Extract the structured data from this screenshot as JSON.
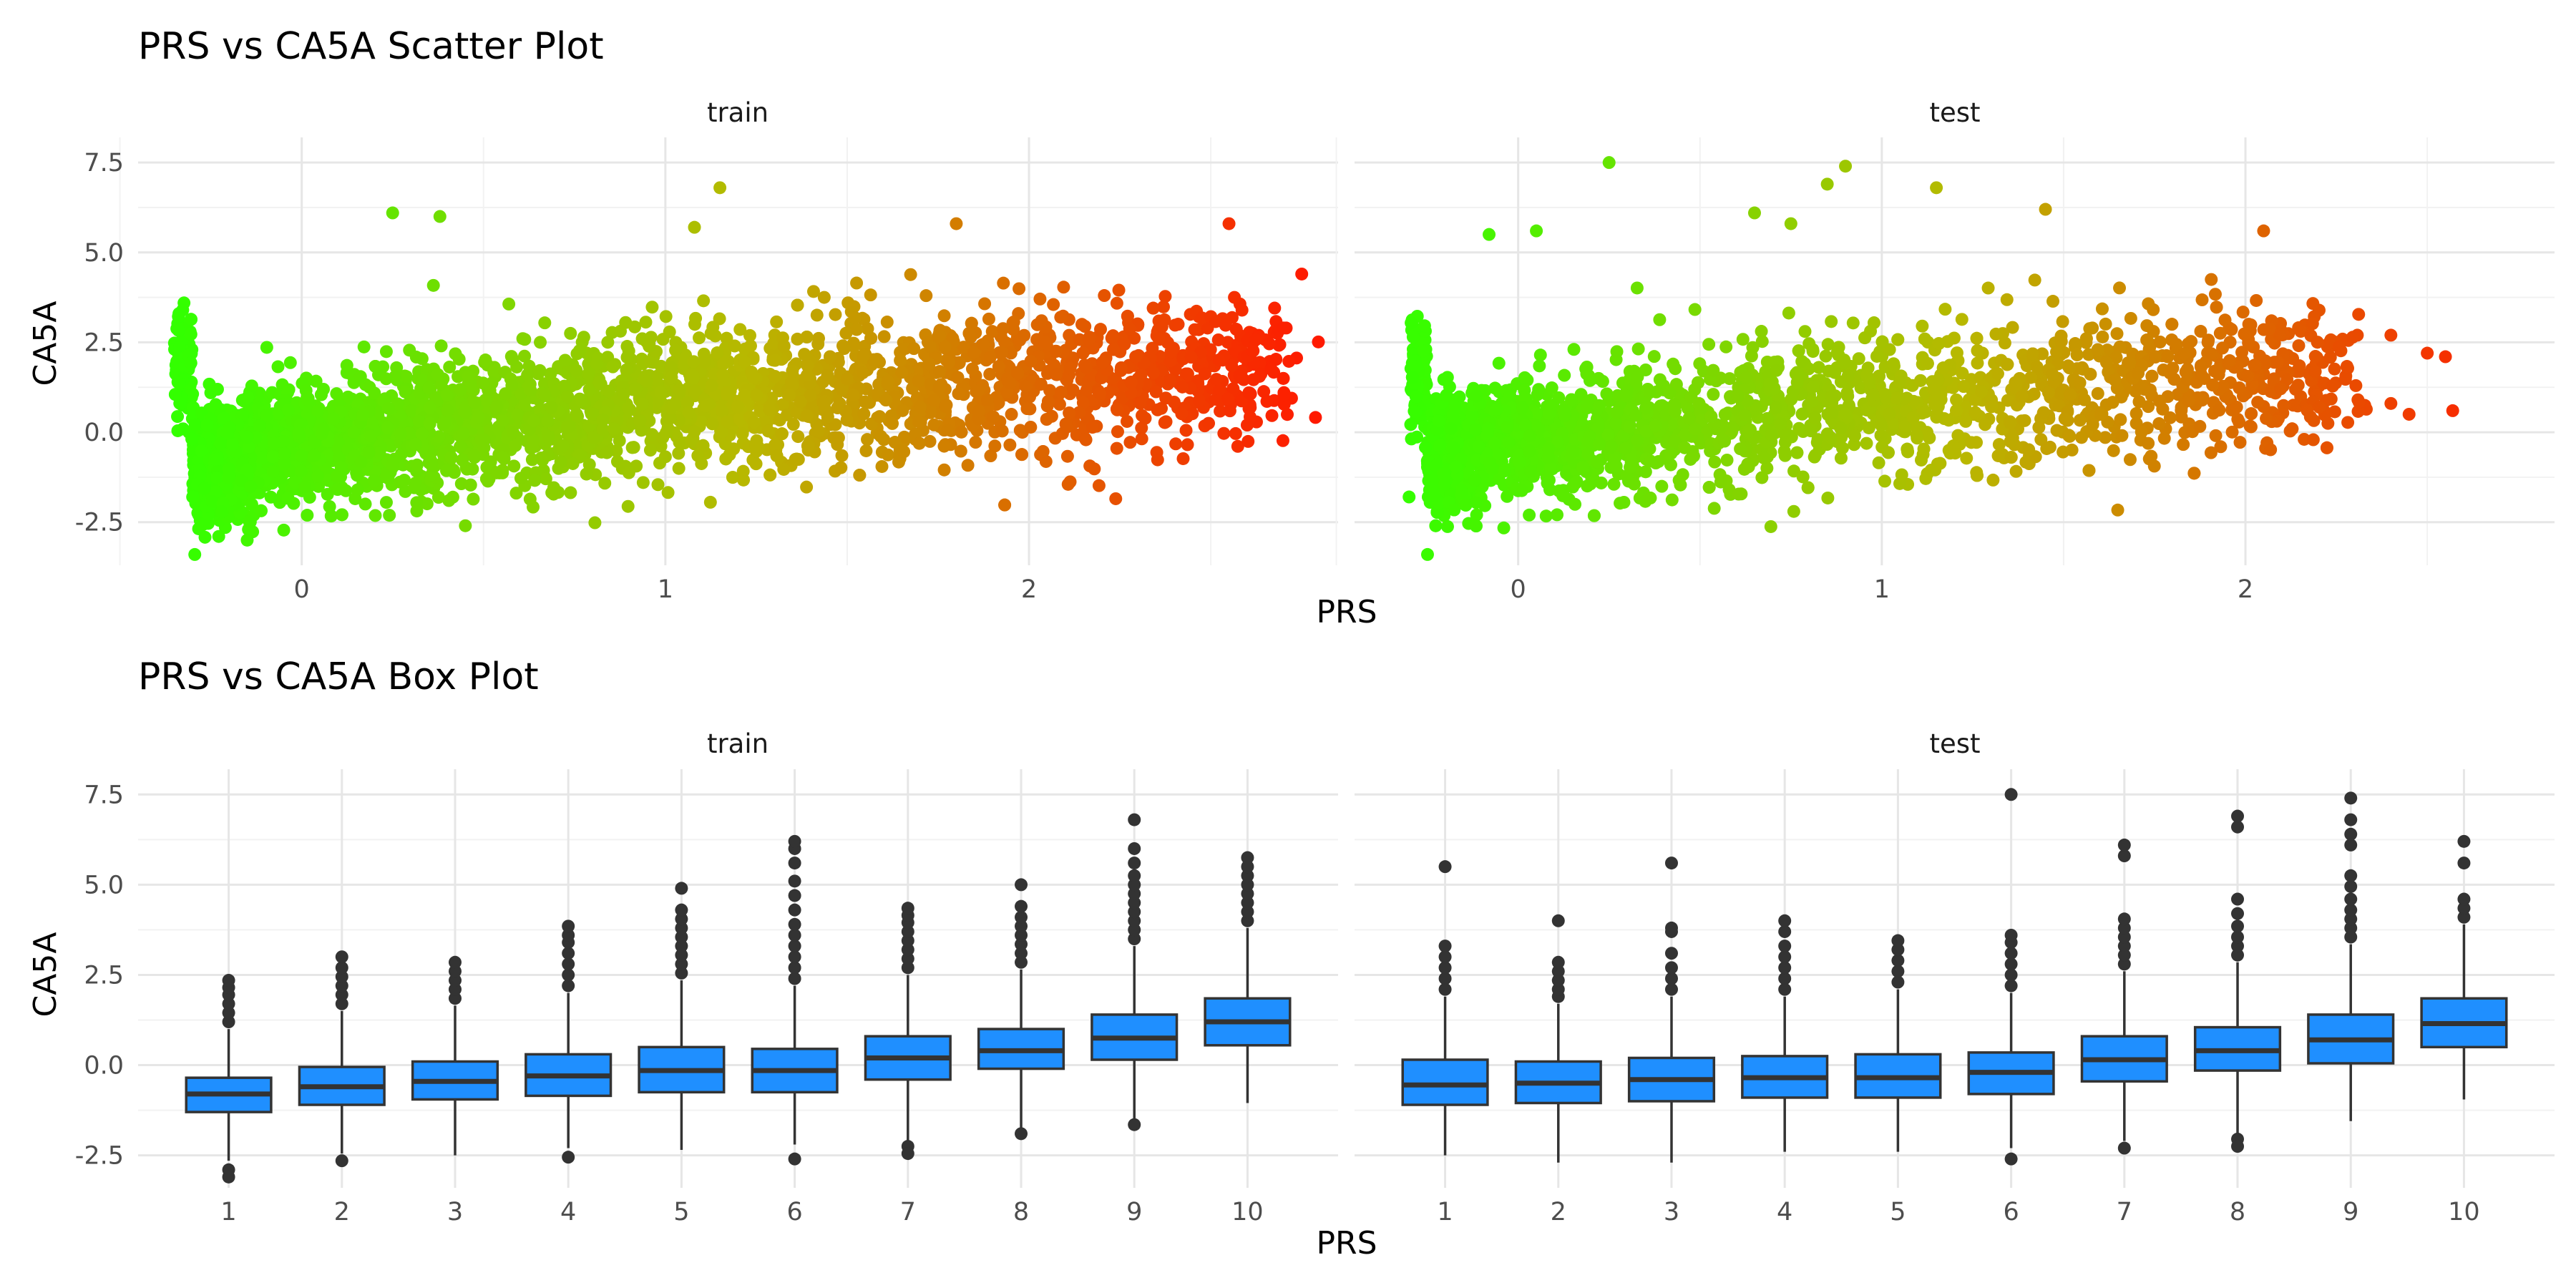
{
  "colors": {
    "point_low": "#33ff00",
    "point_mid": "#b8b800",
    "point_high": "#ff1a00",
    "box_fill": "#1f8fff",
    "box_line": "#333333",
    "grid_major": "#e6e6e6",
    "grid_minor": "#f2f2f2"
  },
  "chart_data": [
    {
      "type": "scatter",
      "title": "PRS vs CA5A Scatter Plot",
      "xlabel": "PRS",
      "ylabel": "CA5A",
      "facets": [
        "train",
        "test"
      ],
      "x_ticks": [
        "0",
        "1",
        "2"
      ],
      "y_ticks": [
        "-2.5",
        "0.0",
        "2.5",
        "5.0",
        "7.5"
      ],
      "xlim": [
        -0.45,
        2.85
      ],
      "ylim": [
        -3.7,
        8.2
      ],
      "grid": true,
      "color_gradient": "green (low PRS) to red (high PRS)",
      "panels": [
        {
          "name": "train",
          "trend_points": [
            [
              -0.3,
              -1.0
            ],
            [
              0.0,
              -0.2
            ],
            [
              0.5,
              0.3
            ],
            [
              1.0,
              0.8
            ],
            [
              1.5,
              1.1
            ],
            [
              2.0,
              1.4
            ],
            [
              2.5,
              1.7
            ],
            [
              2.7,
              1.8
            ]
          ],
          "notable_points": [
            [
              -0.3,
              -1.8
            ],
            [
              -0.15,
              -3.0
            ],
            [
              0.25,
              6.1
            ],
            [
              0.38,
              6.0
            ],
            [
              1.15,
              6.8
            ],
            [
              1.08,
              5.7
            ],
            [
              1.8,
              5.8
            ],
            [
              2.55,
              5.8
            ],
            [
              2.75,
              4.4
            ],
            [
              2.7,
              2.9
            ],
            [
              2.6,
              0.2
            ],
            [
              0.45,
              -2.6
            ]
          ]
        },
        {
          "name": "test",
          "trend_points": [
            [
              -0.25,
              -0.6
            ],
            [
              0.0,
              -0.2
            ],
            [
              0.5,
              0.3
            ],
            [
              1.0,
              0.8
            ],
            [
              1.5,
              1.1
            ],
            [
              2.0,
              1.5
            ],
            [
              2.3,
              1.6
            ]
          ],
          "notable_points": [
            [
              -0.3,
              -1.8
            ],
            [
              0.25,
              7.5
            ],
            [
              0.9,
              7.4
            ],
            [
              0.85,
              6.9
            ],
            [
              1.15,
              6.8
            ],
            [
              1.45,
              6.2
            ],
            [
              2.05,
              5.6
            ],
            [
              -0.08,
              5.5
            ],
            [
              0.05,
              5.6
            ],
            [
              0.65,
              6.1
            ],
            [
              0.75,
              5.8
            ],
            [
              2.4,
              2.7
            ],
            [
              2.5,
              2.2
            ],
            [
              2.55,
              2.1
            ],
            [
              2.57,
              0.6
            ],
            [
              2.45,
              0.5
            ],
            [
              2.4,
              0.8
            ]
          ]
        }
      ]
    },
    {
      "type": "box",
      "title": "PRS vs CA5A Box Plot",
      "xlabel": "PRS",
      "ylabel": "CA5A",
      "facets": [
        "train",
        "test"
      ],
      "categories": [
        "1",
        "2",
        "3",
        "4",
        "5",
        "6",
        "7",
        "8",
        "9",
        "10"
      ],
      "y_ticks": [
        "-2.5",
        "0.0",
        "2.5",
        "5.0",
        "7.5"
      ],
      "ylim": [
        -3.4,
        8.2
      ],
      "grid": true,
      "panels": [
        {
          "name": "train",
          "boxes": [
            {
              "category": "1",
              "q1": -1.3,
              "median": -0.8,
              "q3": -0.35,
              "whisker_low": -2.65,
              "whisker_high": 1.0,
              "outliers": [
                1.2,
                1.45,
                1.7,
                1.95,
                2.15,
                2.35,
                -2.9,
                -3.1
              ]
            },
            {
              "category": "2",
              "q1": -1.1,
              "median": -0.6,
              "q3": -0.05,
              "whisker_low": -2.45,
              "whisker_high": 1.5,
              "outliers": [
                1.7,
                1.95,
                2.2,
                2.45,
                2.7,
                3.0,
                -2.65
              ]
            },
            {
              "category": "3",
              "q1": -0.95,
              "median": -0.45,
              "q3": 0.1,
              "whisker_low": -2.5,
              "whisker_high": 1.65,
              "outliers": [
                1.85,
                2.1,
                2.35,
                2.6,
                2.85
              ]
            },
            {
              "category": "4",
              "q1": -0.85,
              "median": -0.3,
              "q3": 0.3,
              "whisker_low": -2.3,
              "whisker_high": 2.0,
              "outliers": [
                2.2,
                2.5,
                2.8,
                3.1,
                3.4,
                3.6,
                3.85,
                -2.55
              ]
            },
            {
              "category": "5",
              "q1": -0.75,
              "median": -0.15,
              "q3": 0.5,
              "whisker_low": -2.35,
              "whisker_high": 2.35,
              "outliers": [
                2.55,
                2.8,
                3.05,
                3.3,
                3.55,
                3.8,
                4.05,
                4.3,
                4.9
              ]
            },
            {
              "category": "6",
              "q1": -0.75,
              "median": -0.15,
              "q3": 0.45,
              "whisker_low": -2.2,
              "whisker_high": 2.2,
              "outliers": [
                2.4,
                2.7,
                3.0,
                3.3,
                3.6,
                3.9,
                4.3,
                4.7,
                5.1,
                5.6,
                6.0,
                6.2,
                -2.6
              ]
            },
            {
              "category": "7",
              "q1": -0.4,
              "median": 0.2,
              "q3": 0.8,
              "whisker_low": -2.1,
              "whisker_high": 2.5,
              "outliers": [
                2.7,
                2.95,
                3.2,
                3.45,
                3.7,
                3.95,
                4.15,
                4.35,
                -2.25,
                -2.45
              ]
            },
            {
              "category": "8",
              "q1": -0.1,
              "median": 0.4,
              "q3": 1.0,
              "whisker_low": -1.8,
              "whisker_high": 2.65,
              "outliers": [
                2.85,
                3.1,
                3.35,
                3.6,
                3.85,
                4.1,
                4.4,
                5.0,
                -1.9
              ]
            },
            {
              "category": "9",
              "q1": 0.15,
              "median": 0.75,
              "q3": 1.4,
              "whisker_low": -1.55,
              "whisker_high": 3.3,
              "outliers": [
                3.5,
                3.75,
                4.0,
                4.25,
                4.5,
                4.75,
                5.0,
                5.25,
                5.6,
                6.0,
                6.8,
                -1.65
              ]
            },
            {
              "category": "10",
              "q1": 0.55,
              "median": 1.2,
              "q3": 1.85,
              "whisker_low": -1.05,
              "whisker_high": 3.8,
              "outliers": [
                4.0,
                4.25,
                4.5,
                4.75,
                5.0,
                5.25,
                5.5,
                5.75
              ]
            }
          ]
        },
        {
          "name": "test",
          "boxes": [
            {
              "category": "1",
              "q1": -1.1,
              "median": -0.55,
              "q3": 0.15,
              "whisker_low": -2.5,
              "whisker_high": 1.9,
              "outliers": [
                2.1,
                2.4,
                2.7,
                3.0,
                3.3,
                5.5
              ]
            },
            {
              "category": "2",
              "q1": -1.05,
              "median": -0.5,
              "q3": 0.1,
              "whisker_low": -2.7,
              "whisker_high": 1.7,
              "outliers": [
                1.9,
                2.1,
                2.35,
                2.6,
                2.85,
                4.0
              ]
            },
            {
              "category": "3",
              "q1": -1.0,
              "median": -0.4,
              "q3": 0.2,
              "whisker_low": -2.7,
              "whisker_high": 1.9,
              "outliers": [
                2.1,
                2.4,
                2.7,
                3.1,
                3.7,
                3.8,
                5.6
              ]
            },
            {
              "category": "4",
              "q1": -0.9,
              "median": -0.35,
              "q3": 0.25,
              "whisker_low": -2.4,
              "whisker_high": 1.9,
              "outliers": [
                2.1,
                2.4,
                2.7,
                3.0,
                3.3,
                3.7,
                4.0
              ]
            },
            {
              "category": "5",
              "q1": -0.9,
              "median": -0.35,
              "q3": 0.3,
              "whisker_low": -2.4,
              "whisker_high": 2.1,
              "outliers": [
                2.3,
                2.6,
                2.9,
                3.2,
                3.45
              ]
            },
            {
              "category": "6",
              "q1": -0.8,
              "median": -0.2,
              "q3": 0.35,
              "whisker_low": -2.3,
              "whisker_high": 2.0,
              "outliers": [
                2.2,
                2.5,
                2.8,
                3.1,
                3.4,
                3.6,
                7.5,
                -2.6
              ]
            },
            {
              "category": "7",
              "q1": -0.45,
              "median": 0.15,
              "q3": 0.8,
              "whisker_low": -2.1,
              "whisker_high": 2.6,
              "outliers": [
                2.8,
                3.05,
                3.3,
                3.55,
                3.8,
                4.05,
                5.8,
                6.1,
                -2.3
              ]
            },
            {
              "category": "8",
              "q1": -0.15,
              "median": 0.4,
              "q3": 1.05,
              "whisker_low": -1.9,
              "whisker_high": 2.85,
              "outliers": [
                3.05,
                3.3,
                3.55,
                3.85,
                4.2,
                4.6,
                6.6,
                6.9,
                -2.05,
                -2.25
              ]
            },
            {
              "category": "9",
              "q1": 0.05,
              "median": 0.7,
              "q3": 1.4,
              "whisker_low": -1.55,
              "whisker_high": 3.35,
              "outliers": [
                3.55,
                3.8,
                4.05,
                4.3,
                4.6,
                4.95,
                5.25,
                6.1,
                6.4,
                6.8,
                7.4
              ]
            },
            {
              "category": "10",
              "q1": 0.5,
              "median": 1.15,
              "q3": 1.85,
              "whisker_low": -0.95,
              "whisker_high": 3.9,
              "outliers": [
                4.1,
                4.35,
                4.6,
                5.6,
                6.2
              ]
            }
          ]
        }
      ]
    }
  ]
}
